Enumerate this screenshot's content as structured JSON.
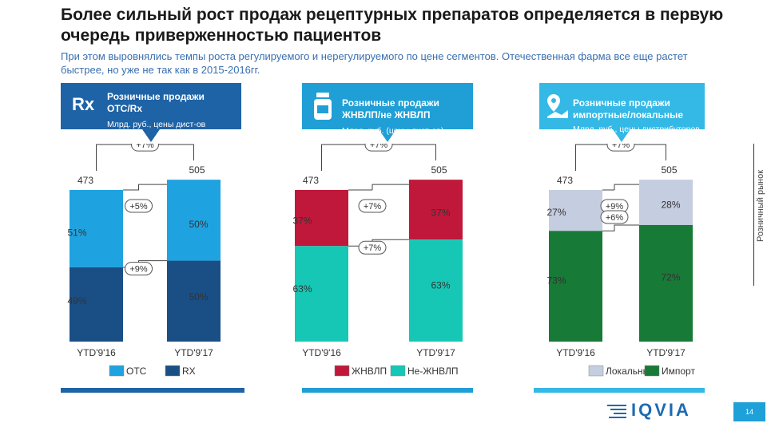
{
  "title": "Более сильный рост продаж рецептурных препаратов определяется в первую очередь приверженностью пациентов",
  "subtitle": "При этом выровнялись темпы роста регулируемого и нерегулируемого по цене сегментов. Отечественная фарма все еще растет быстрее, но уже не так как в 2015-2016гг.",
  "side_label": "Розничный рынок",
  "banners": [
    {
      "title": "Розничные продажи ОТС/Rx",
      "unit": "Млрд. руб., цены дист-ов",
      "icon": "rx-icon",
      "icon_text": "Rx",
      "color": "#1e63a6"
    },
    {
      "title": "Розничные продажи ЖНВЛП/не ЖНВЛП",
      "unit": "Млрд. руб. (цены дист-ов)",
      "icon": "pill-bottle-icon",
      "color": "#1f9fd6"
    },
    {
      "title": "Розничные продажи импортные/локальные",
      "unit": "Млрд. руб., цены дистрибуторов",
      "icon": "location-pin-icon",
      "color": "#34b8e6"
    }
  ],
  "chart_data": [
    {
      "type": "bar",
      "stacked": true,
      "categories": [
        "YTD'9'16",
        "YTD'9'17"
      ],
      "totals": [
        473,
        505
      ],
      "total_growth": "+7%",
      "series": [
        {
          "name": "OTC",
          "shares": [
            51,
            50
          ],
          "labels": [
            "51%",
            "50%"
          ],
          "color": "#1fa3e0",
          "growth": "+5%"
        },
        {
          "name": "RX",
          "shares": [
            49,
            50
          ],
          "labels": [
            "49%",
            "50%"
          ],
          "color": "#1a4f86",
          "growth": "+9%"
        }
      ]
    },
    {
      "type": "bar",
      "stacked": true,
      "categories": [
        "YTD'9'16",
        "YTD'9'17"
      ],
      "totals": [
        473,
        505
      ],
      "total_growth": "+7%",
      "series": [
        {
          "name": "ЖНВЛП",
          "shares": [
            37,
            37
          ],
          "labels": [
            "37%",
            "37%"
          ],
          "color": "#c0183a",
          "growth": "+7%"
        },
        {
          "name": "Не-ЖНВЛП",
          "shares": [
            63,
            63
          ],
          "labels": [
            "63%",
            "63%"
          ],
          "color": "#17c7b5",
          "growth": "+7%"
        }
      ]
    },
    {
      "type": "bar",
      "stacked": true,
      "categories": [
        "YTD'9'16",
        "YTD'9'17"
      ],
      "totals": [
        473,
        505
      ],
      "total_growth": "+7%",
      "series": [
        {
          "name": "Локальные",
          "shares": [
            27,
            28
          ],
          "labels": [
            "27%",
            "28%"
          ],
          "color": "#c5cde0",
          "growth": "+9%"
        },
        {
          "name": "Импорт",
          "shares": [
            73,
            72
          ],
          "labels": [
            "73%",
            "72%"
          ],
          "color": "#177a37",
          "growth": "+6%"
        }
      ]
    }
  ],
  "footer_colors": [
    "#1e63a6",
    "#1f9fd6",
    "#34b8e6"
  ],
  "logo": "IQVIA",
  "page_number": "14"
}
